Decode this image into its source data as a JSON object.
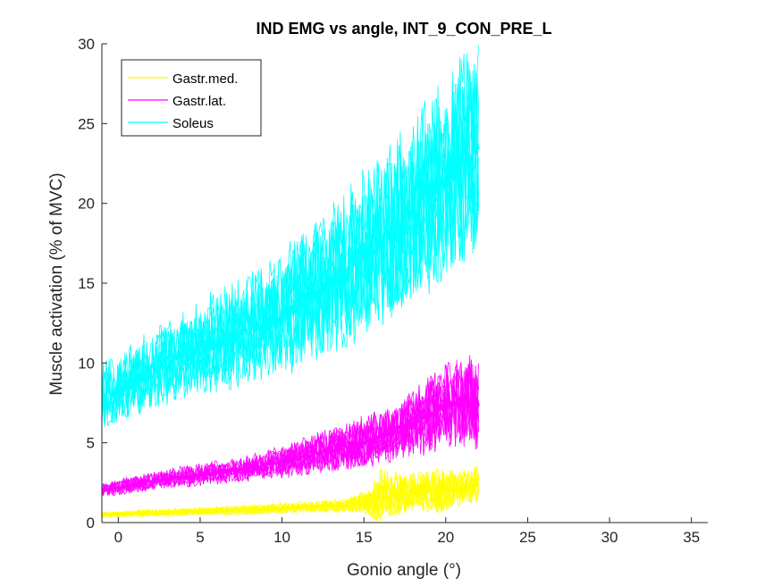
{
  "chart_data": {
    "type": "line",
    "title": "IND EMG vs angle, INT_9_CON_PRE_L",
    "xlabel": "Gonio angle (°)",
    "ylabel": "Muscle activation (% of MVC)",
    "xlim": [
      -1,
      36
    ],
    "ylim": [
      0,
      30
    ],
    "xticks": [
      0,
      5,
      10,
      15,
      20,
      25,
      30,
      35
    ],
    "yticks": [
      0,
      5,
      10,
      15,
      20,
      25,
      30
    ],
    "xtick_labels": [
      "0",
      "5",
      "10",
      "15",
      "20",
      "25",
      "30",
      "35"
    ],
    "ytick_labels": [
      "0",
      "5",
      "10",
      "15",
      "20",
      "25",
      "30"
    ],
    "grid": false,
    "legend_position": "top-left",
    "x_range_of_data": [
      -1,
      22
    ],
    "series": [
      {
        "name": "Gastr.med.",
        "color": "#FFFF00",
        "x": [
          -1,
          2,
          5,
          8,
          10,
          12,
          14,
          15,
          16,
          17,
          18,
          19,
          20,
          21,
          22
        ],
        "mean": [
          0.5,
          0.6,
          0.7,
          0.8,
          0.9,
          1.0,
          1.1,
          1.3,
          1.6,
          1.8,
          1.9,
          2.0,
          2.1,
          2.2,
          2.4
        ],
        "spread": [
          0.15,
          0.2,
          0.2,
          0.25,
          0.3,
          0.3,
          0.4,
          0.6,
          1.5,
          1.2,
          1.0,
          1.2,
          1.2,
          0.9,
          1.0
        ]
      },
      {
        "name": "Gastr.lat.",
        "color": "#FF00FF",
        "x": [
          -1,
          2,
          5,
          8,
          10,
          12,
          14,
          15,
          16,
          17,
          18,
          19,
          20,
          21,
          22
        ],
        "mean": [
          2.0,
          2.6,
          3.0,
          3.4,
          3.8,
          4.3,
          4.8,
          5.0,
          5.4,
          5.8,
          6.2,
          6.8,
          7.3,
          7.5,
          7.5
        ],
        "spread": [
          0.4,
          0.5,
          0.6,
          0.7,
          0.9,
          1.1,
          1.3,
          1.4,
          1.5,
          1.6,
          1.8,
          2.2,
          2.4,
          2.5,
          2.5
        ]
      },
      {
        "name": "Soleus",
        "color": "#00FFFF",
        "x": [
          -1,
          2,
          5,
          8,
          10,
          12,
          14,
          15,
          16,
          17,
          18,
          19,
          20,
          21,
          22
        ],
        "mean": [
          7.8,
          9.5,
          11.0,
          12.0,
          13.0,
          14.5,
          16.0,
          16.8,
          17.5,
          18.5,
          19.5,
          20.5,
          21.5,
          22.8,
          23.5
        ],
        "spread": [
          1.8,
          2.2,
          2.6,
          3.0,
          3.4,
          3.8,
          4.2,
          4.4,
          4.6,
          4.8,
          5.0,
          5.2,
          5.5,
          5.8,
          6.0
        ]
      }
    ]
  }
}
